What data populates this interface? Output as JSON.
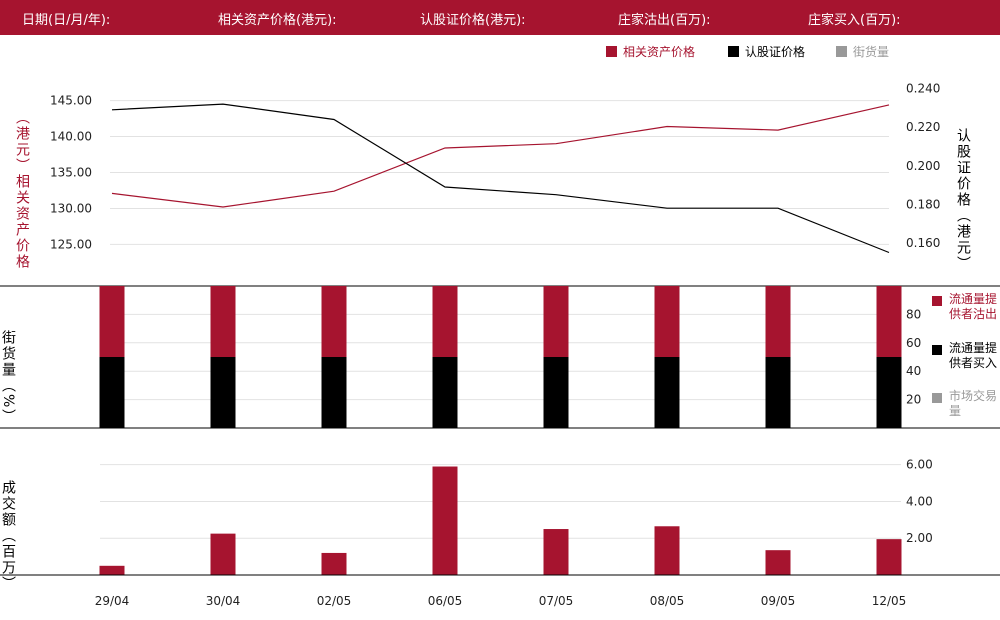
{
  "header": {
    "date_label": "日期(日/月/年):",
    "underlying_label": "相关资产价格(港元):",
    "warrant_label": "认股证价格(港元):",
    "mm_sell_label": "庄家沽出(百万):",
    "mm_buy_label": "庄家买入(百万):"
  },
  "legend_top": {
    "underlying": "相关资产价格",
    "warrant": "认股证价格",
    "street": "街货量"
  },
  "axis_labels": {
    "left_top": "相关资产价格",
    "left_top_unit": "（港元）",
    "right_top": "认股证价格",
    "right_top_unit": "（港元）",
    "mid": "街货量",
    "mid_unit": "（%）",
    "bottom": "成交额",
    "bottom_unit": "（百万）"
  },
  "legend_mid": {
    "sell": "流通量提供者沽出",
    "buy": "流通量提供者买入",
    "market": "市场交易量"
  },
  "colors": {
    "header_bg": "#a6142f",
    "underlying": "#a6142f",
    "warrant": "#000000",
    "market": "#999999"
  },
  "chart_data": [
    {
      "type": "line",
      "categories": [
        "29/04",
        "30/04",
        "02/05",
        "06/05",
        "07/05",
        "08/05",
        "09/05",
        "12/05"
      ],
      "series": [
        {
          "name": "相关资产价格",
          "axis": "left",
          "values": [
            132.1,
            130.2,
            132.4,
            138.4,
            139.0,
            141.4,
            140.9,
            144.4
          ]
        },
        {
          "name": "认股证价格",
          "axis": "right",
          "values": [
            0.229,
            0.232,
            0.224,
            0.189,
            0.185,
            0.178,
            0.178,
            0.155
          ]
        }
      ],
      "ylim_left": [
        122.0,
        148.0
      ],
      "ylim_right": [
        0.148,
        0.245
      ],
      "yticks_left": [
        "145.00",
        "140.00",
        "135.00",
        "130.00",
        "125.00"
      ],
      "yticks_right": [
        "0.240",
        "0.220",
        "0.200",
        "0.180",
        "0.160"
      ]
    },
    {
      "type": "bar",
      "stacked": true,
      "categories": [
        "29/04",
        "30/04",
        "02/05",
        "06/05",
        "07/05",
        "08/05",
        "09/05",
        "12/05"
      ],
      "series": [
        {
          "name": "流通量提供者买入",
          "values": [
            50,
            50,
            50,
            50,
            50,
            50,
            50,
            50
          ]
        },
        {
          "name": "流通量提供者沽出",
          "values": [
            50,
            50,
            50,
            50,
            50,
            50,
            50,
            50
          ]
        }
      ],
      "ylim": [
        0,
        100
      ],
      "yticks": [
        "80",
        "60",
        "40",
        "20"
      ]
    },
    {
      "type": "bar",
      "categories": [
        "29/04",
        "30/04",
        "02/05",
        "06/05",
        "07/05",
        "08/05",
        "09/05",
        "12/05"
      ],
      "values": [
        0.5,
        2.25,
        1.2,
        5.9,
        2.5,
        2.65,
        1.35,
        1.95
      ],
      "ylim": [
        0,
        6.2
      ],
      "yticks": [
        "6.00",
        "4.00",
        "2.00"
      ]
    }
  ]
}
